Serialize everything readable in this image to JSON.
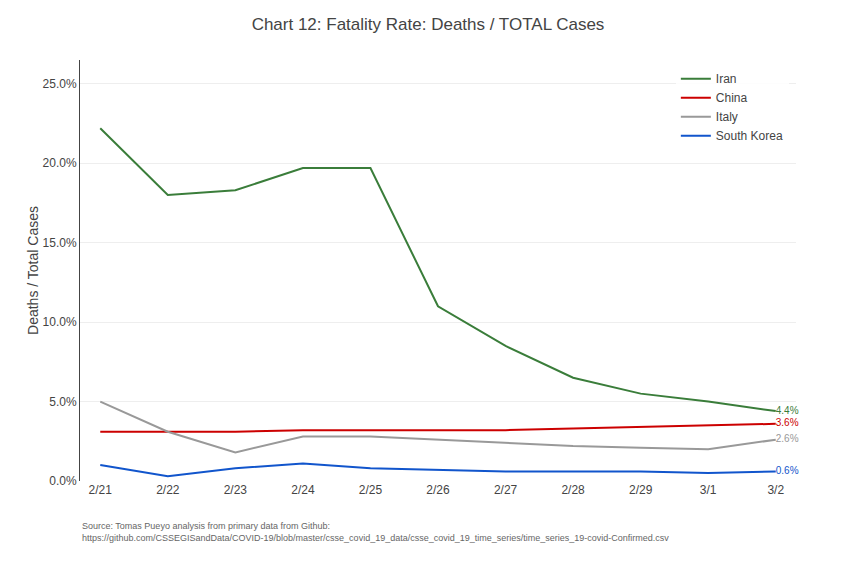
{
  "chart_data": {
    "type": "line",
    "title": "Chart 12: Fatality Rate: Deaths / TOTAL Cases",
    "y_label": "Deaths / Total Cases",
    "annotations": [
      "Source: Tomas Pueyo analysis from primary data from Github:\nhttps://github.com/CSSEGISandData/COVID-19/blob/master/csse_covid_19_data/csse_covid_19_time_series/time_series_19-covid-Confirmed.csv"
    ],
    "categories": [
      "2/21",
      "2/22",
      "2/23",
      "2/24",
      "2/25",
      "2/26",
      "2/27",
      "2/28",
      "2/29",
      "3/1",
      "3/2"
    ],
    "series": [
      {
        "name": "Iran",
        "color": "#3a7d3a",
        "values": [
          0.222,
          0.18,
          0.183,
          0.197,
          0.197,
          0.11,
          0.085,
          0.065,
          0.055,
          0.05,
          0.044
        ],
        "value_labels": [
          null,
          null,
          null,
          null,
          null,
          null,
          null,
          null,
          null,
          null,
          "4.4%"
        ]
      },
      {
        "name": "China",
        "color": "#cc0000",
        "values": [
          0.031,
          0.031,
          0.031,
          0.032,
          0.032,
          0.032,
          0.032,
          0.033,
          0.034,
          0.035,
          0.036
        ],
        "value_labels": [
          null,
          null,
          null,
          null,
          null,
          null,
          null,
          null,
          null,
          null,
          "3.6%"
        ]
      },
      {
        "name": "Italy",
        "color": "#999999",
        "values": [
          0.05,
          0.031,
          0.018,
          0.028,
          0.028,
          0.026,
          0.024,
          0.022,
          0.021,
          0.02,
          0.026
        ],
        "value_labels": [
          null,
          null,
          null,
          null,
          null,
          null,
          null,
          null,
          null,
          null,
          "2.6%"
        ]
      },
      {
        "name": "South Korea",
        "color": "#1155cc",
        "values": [
          0.01,
          0.003,
          0.008,
          0.011,
          0.008,
          0.007,
          0.006,
          0.006,
          0.006,
          0.005,
          0.006
        ],
        "value_labels": [
          null,
          null,
          null,
          null,
          null,
          null,
          null,
          null,
          null,
          null,
          "0.6%"
        ]
      }
    ],
    "ylim": [
      0,
      0.265
    ],
    "yticks": [
      {
        "value": 0.0,
        "label": "0.0%"
      },
      {
        "value": 0.05,
        "label": "5.0%"
      },
      {
        "value": 0.1,
        "label": "10.0%"
      },
      {
        "value": 0.15,
        "label": "15.0%"
      },
      {
        "value": 0.2,
        "label": "20.0%"
      },
      {
        "value": 0.25,
        "label": "25.0%"
      }
    ],
    "grid": true,
    "legend": "top right",
    "data_labels": true
  }
}
